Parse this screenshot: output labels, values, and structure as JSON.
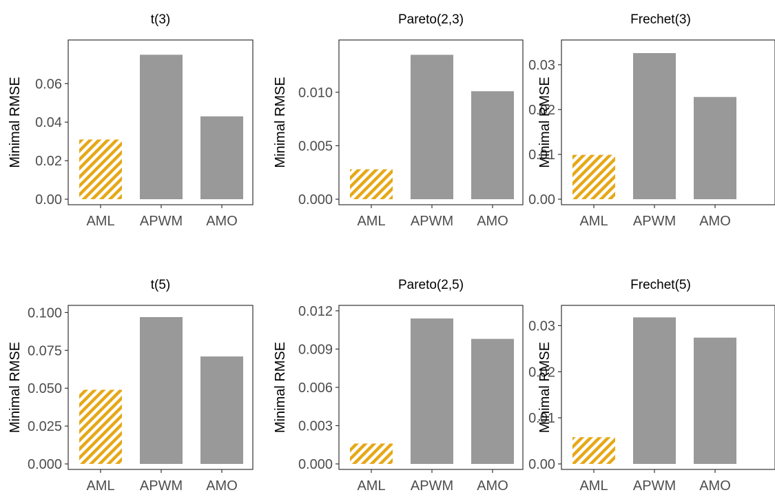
{
  "chart_data": [
    {
      "type": "bar",
      "title": "t(3)",
      "ylabel": "Minimal RMSE",
      "categories": [
        "AML",
        "APWM",
        "AMO"
      ],
      "values": [
        0.031,
        0.075,
        0.043
      ],
      "ylim": [
        0,
        0.0805
      ],
      "yticks": [
        "0.00",
        "0.02",
        "0.04",
        "0.06"
      ],
      "ytick_values": [
        0,
        0.02,
        0.04,
        0.06
      ]
    },
    {
      "type": "bar",
      "title": "Pareto(2,3)",
      "ylabel": "Minimal RMSE",
      "categories": [
        "AML",
        "APWM",
        "AMO"
      ],
      "values": [
        0.0028,
        0.0135,
        0.0101
      ],
      "ylim": [
        0,
        0.0145
      ],
      "yticks": [
        "0.000",
        "0.005",
        "0.010"
      ],
      "ytick_values": [
        0,
        0.005,
        0.01
      ]
    },
    {
      "type": "bar",
      "title": "Frechet(3)",
      "ylabel": "Minimal RMSE",
      "categories": [
        "AML",
        "APWM",
        "AMO"
      ],
      "values": [
        0.0099,
        0.0326,
        0.0228
      ],
      "ylim": [
        0,
        0.0346
      ],
      "yticks": [
        "0.00",
        "0.01",
        "0.02",
        "0.03"
      ],
      "ytick_values": [
        0,
        0.01,
        0.02,
        0.03
      ]
    },
    {
      "type": "bar",
      "title": "t(5)",
      "ylabel": "Minimal RMSE",
      "categories": [
        "AML",
        "APWM",
        "AMO"
      ],
      "values": [
        0.049,
        0.097,
        0.071
      ],
      "ylim": [
        0,
        0.102
      ],
      "yticks": [
        "0.000",
        "0.025",
        "0.050",
        "0.075",
        "0.100"
      ],
      "ytick_values": [
        0,
        0.025,
        0.05,
        0.075,
        0.1
      ]
    },
    {
      "type": "bar",
      "title": "Pareto(2,5)",
      "ylabel": "Minimal RMSE",
      "categories": [
        "AML",
        "APWM",
        "AMO"
      ],
      "values": [
        0.0016,
        0.0114,
        0.0098
      ],
      "ylim": [
        0,
        0.0121
      ],
      "yticks": [
        "0.000",
        "0.003",
        "0.006",
        "0.009",
        "0.012"
      ],
      "ytick_values": [
        0,
        0.003,
        0.006,
        0.009,
        0.012
      ]
    },
    {
      "type": "bar",
      "title": "Frechet(5)",
      "ylabel": "Minimal RMSE",
      "categories": [
        "AML",
        "APWM",
        "AMO"
      ],
      "values": [
        0.0058,
        0.0318,
        0.0274
      ],
      "ylim": [
        0,
        0.0335
      ],
      "yticks": [
        "0.00",
        "0.01",
        "0.02",
        "0.03"
      ],
      "ytick_values": [
        0,
        0.01,
        0.02,
        0.03
      ]
    }
  ],
  "colors": {
    "highlight_stripe": "#E6A817",
    "bar": "#999999",
    "axis": "#333333",
    "tick_text": "#4d4d4d"
  }
}
